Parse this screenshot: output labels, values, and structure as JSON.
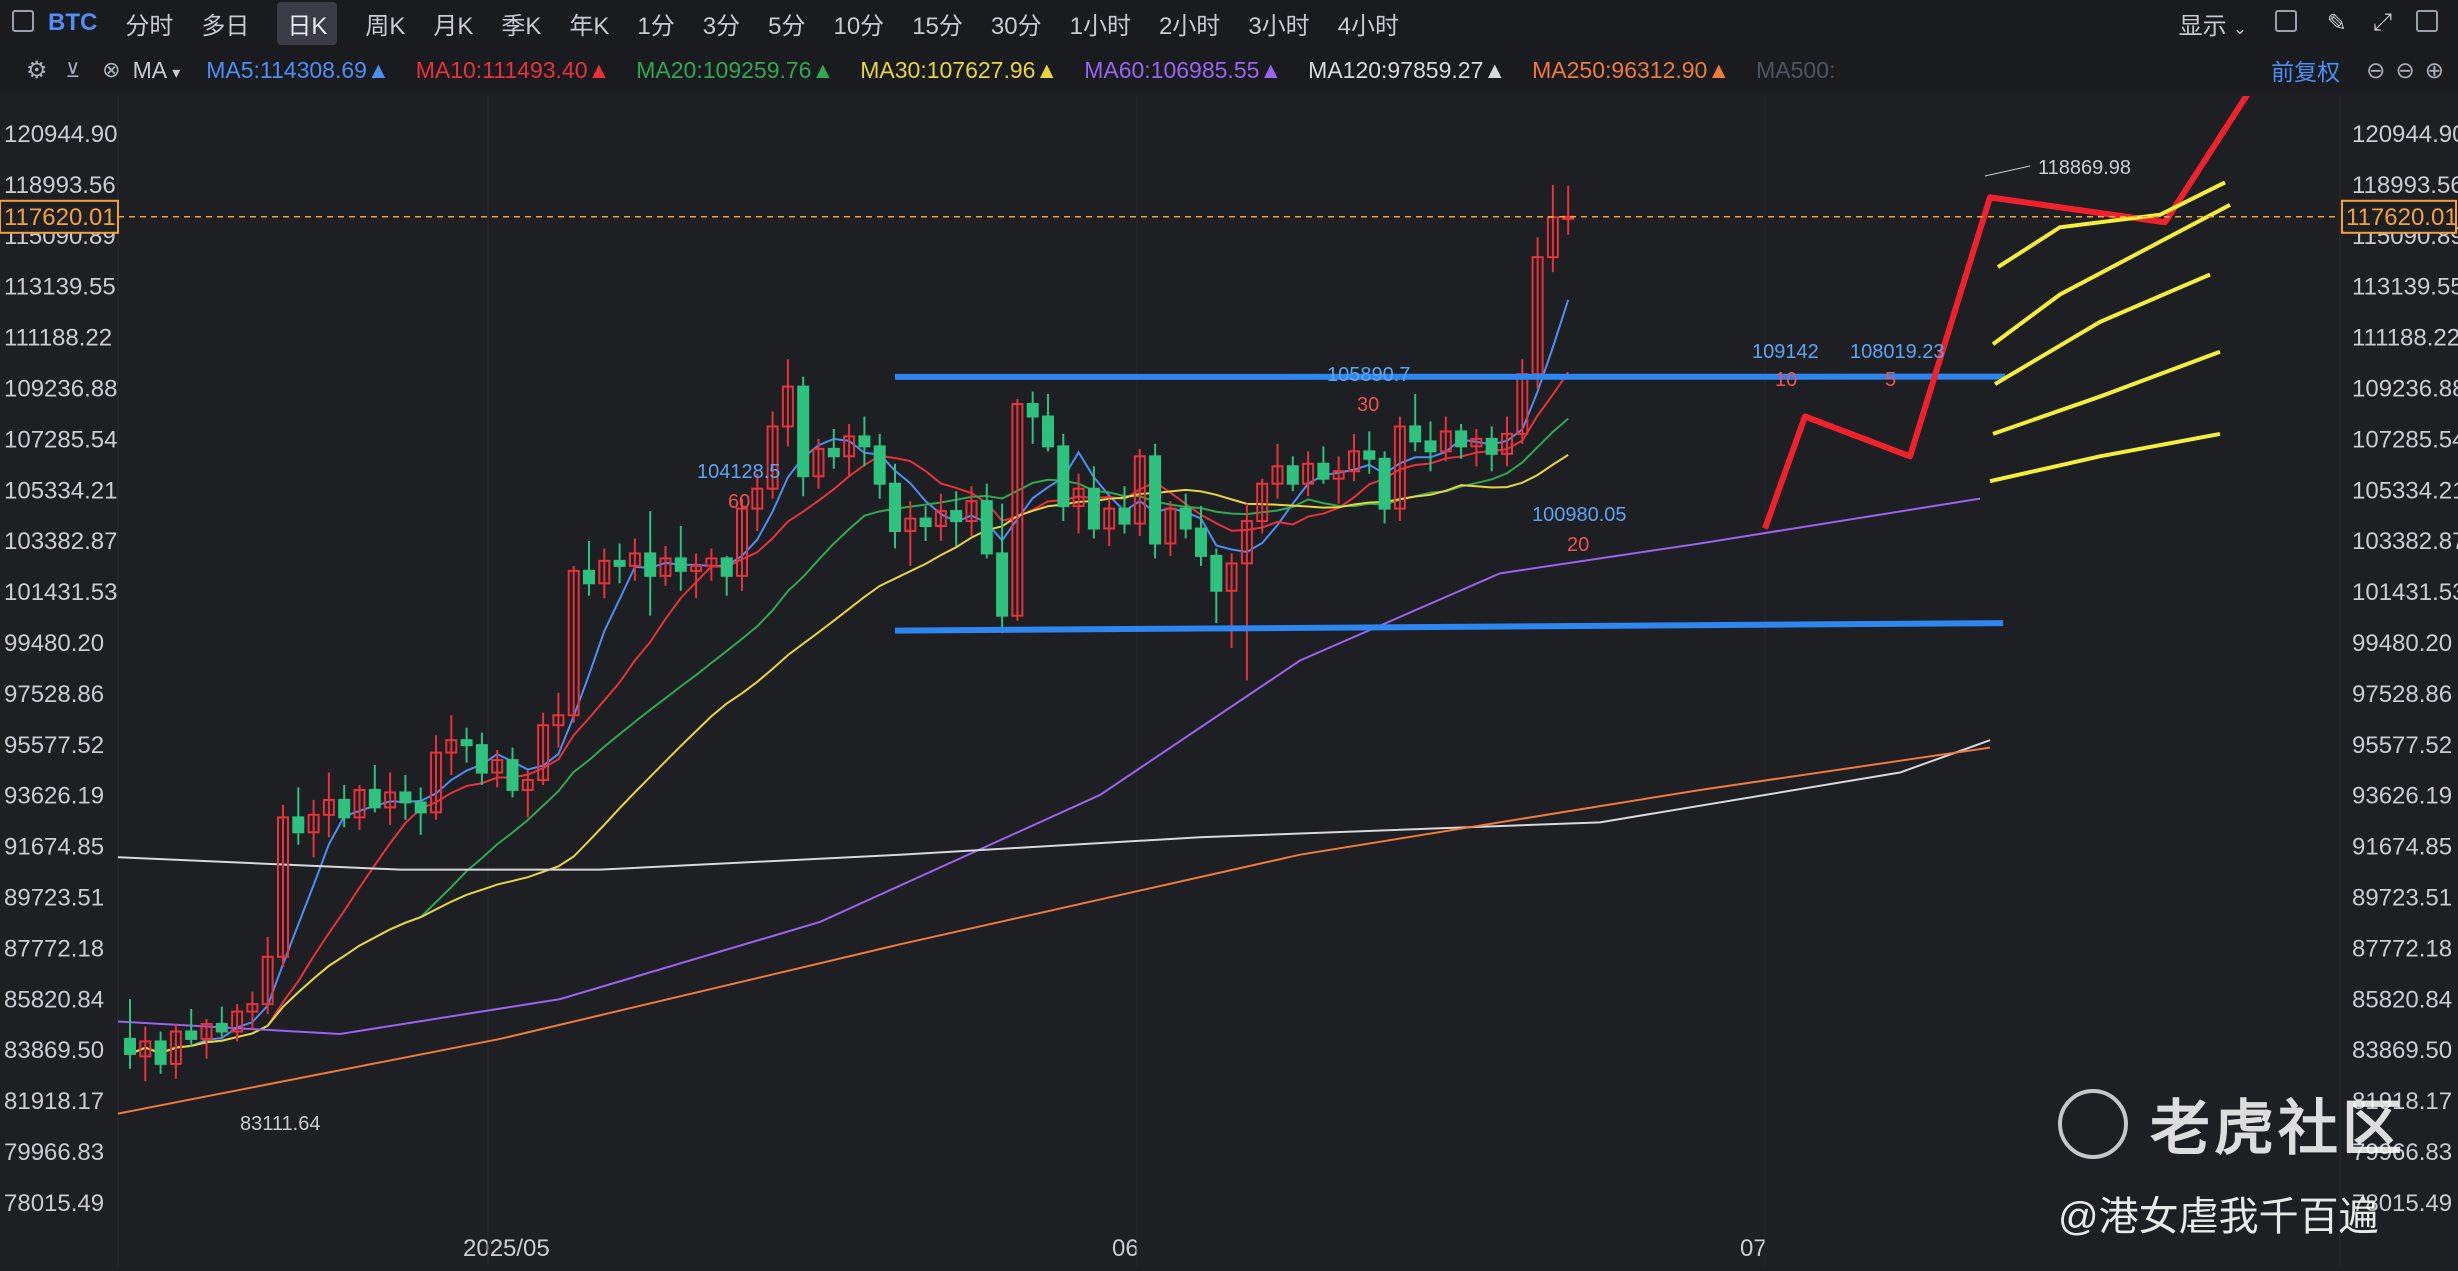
{
  "toolbar": {
    "symbol": "BTC",
    "periods": [
      "分时",
      "多日",
      "日K",
      "周K",
      "月K",
      "季K",
      "年K",
      "1分",
      "3分",
      "5分",
      "10分",
      "15分",
      "30分",
      "1小时",
      "2小时",
      "3小时",
      "4小时"
    ],
    "active_period": "日K",
    "display_label": "显示"
  },
  "ma_bar": {
    "ma_label": "MA",
    "items": [
      {
        "text": "MA5:114308.69▲",
        "color": "#4b8ef5"
      },
      {
        "text": "MA10:111493.40▲",
        "color": "#e8313a"
      },
      {
        "text": "MA20:109259.76▲",
        "color": "#2fa84f"
      },
      {
        "text": "MA30:107627.96▲",
        "color": "#e8d53c"
      },
      {
        "text": "MA60:106985.55▲",
        "color": "#9a63f0"
      },
      {
        "text": "MA120:97859.27▲",
        "color": "#d7d9de"
      },
      {
        "text": "MA250:96312.90▲",
        "color": "#f07a3a"
      },
      {
        "text": "MA500:",
        "color": "#4e5560"
      }
    ],
    "adjust_label": "前复权"
  },
  "axis": {
    "y_ticks": [
      "120944.90",
      "118993.56",
      "115090.89",
      "113139.55",
      "111188.22",
      "109236.88",
      "107285.54",
      "105334.21",
      "103382.87",
      "101431.53",
      "99480.20",
      "97528.86",
      "95577.52",
      "93626.19",
      "91674.85",
      "89723.51",
      "87772.18",
      "85820.84",
      "83869.50",
      "81918.17",
      "79966.83",
      "78015.49"
    ],
    "x_ticks": [
      "2025/05",
      "06",
      "07"
    ],
    "current_price": "117620.01"
  },
  "annotations": {
    "high": "118869.98",
    "low": "83111.64",
    "a1": "104128.5",
    "a1n": "60",
    "a2": "105890.7",
    "a2n": "30",
    "a3": "100980.05",
    "a3n": "20",
    "a4": "109142",
    "a4n": "10",
    "a5": "108019.23",
    "a5n": "5"
  },
  "watermark": {
    "brand": "老虎社区",
    "author": "@港女虐我千百遍"
  },
  "chart_data": {
    "type": "candlestick",
    "title": "",
    "series": [
      {
        "name": "MA5",
        "color": "#4b8ef5"
      },
      {
        "name": "MA10",
        "color": "#e8313a"
      },
      {
        "name": "MA20",
        "color": "#2fa84f"
      },
      {
        "name": "MA30",
        "color": "#e8d53c"
      },
      {
        "name": "MA60",
        "color": "#9a63f0"
      },
      {
        "name": "MA120",
        "color": "#d7d9de"
      },
      {
        "name": "MA250",
        "color": "#f07a3a"
      }
    ],
    "ohlc": [
      [
        84600,
        86200,
        83400,
        84000
      ],
      [
        83900,
        85100,
        82900,
        84500
      ],
      [
        84500,
        84900,
        83200,
        83600
      ],
      [
        83600,
        85200,
        83000,
        84900
      ],
      [
        84900,
        85800,
        84300,
        84600
      ],
      [
        84600,
        85400,
        83800,
        85200
      ],
      [
        85200,
        85900,
        84700,
        84900
      ],
      [
        84900,
        86000,
        84500,
        85700
      ],
      [
        85700,
        86500,
        85000,
        86000
      ],
      [
        86000,
        88700,
        85600,
        87900
      ],
      [
        87900,
        94000,
        87500,
        93500
      ],
      [
        93500,
        94700,
        92400,
        92900
      ],
      [
        92900,
        94200,
        91900,
        93600
      ],
      [
        93600,
        95300,
        92700,
        94200
      ],
      [
        94200,
        94800,
        93100,
        93500
      ],
      [
        93500,
        94800,
        93000,
        94600
      ],
      [
        94600,
        95600,
        93700,
        93900
      ],
      [
        93900,
        95300,
        93200,
        94500
      ],
      [
        94500,
        95200,
        93400,
        94100
      ],
      [
        94100,
        94700,
        92800,
        93700
      ],
      [
        93700,
        96800,
        93400,
        96100
      ],
      [
        96100,
        97600,
        95200,
        96600
      ],
      [
        96600,
        97100,
        95700,
        96400
      ],
      [
        96400,
        96900,
        94800,
        95300
      ],
      [
        95300,
        96200,
        94700,
        95800
      ],
      [
        95800,
        96300,
        94300,
        94600
      ],
      [
        94600,
        95400,
        93500,
        95000
      ],
      [
        95000,
        97700,
        94800,
        97200
      ],
      [
        97200,
        98500,
        96300,
        97600
      ],
      [
        97600,
        103600,
        97300,
        103400
      ],
      [
        103400,
        104600,
        102400,
        102900
      ],
      [
        102900,
        104300,
        102300,
        103800
      ],
      [
        103800,
        104500,
        102900,
        103600
      ],
      [
        103600,
        104700,
        103000,
        104100
      ],
      [
        104100,
        105800,
        101600,
        103200
      ],
      [
        103200,
        104400,
        102800,
        103900
      ],
      [
        103900,
        105200,
        102600,
        103400
      ],
      [
        103400,
        104100,
        102300,
        103600
      ],
      [
        103600,
        104300,
        103000,
        103900
      ],
      [
        103900,
        104000,
        102400,
        103200
      ],
      [
        103200,
        106300,
        102600,
        105900
      ],
      [
        105900,
        107300,
        105000,
        106700
      ],
      [
        106700,
        109800,
        106300,
        109200
      ],
      [
        109200,
        111900,
        108400,
        110800
      ],
      [
        110800,
        111200,
        106400,
        107200
      ],
      [
        107200,
        108700,
        106700,
        108300
      ],
      [
        108300,
        109100,
        107500,
        108000
      ],
      [
        108000,
        109300,
        107200,
        108800
      ],
      [
        108800,
        109600,
        107600,
        108400
      ],
      [
        108400,
        108900,
        106300,
        106900
      ],
      [
        106900,
        107700,
        104300,
        105000
      ],
      [
        105000,
        106200,
        103600,
        105500
      ],
      [
        105500,
        106000,
        104600,
        105200
      ],
      [
        105200,
        106500,
        104600,
        105800
      ],
      [
        105800,
        106600,
        104400,
        105400
      ],
      [
        105400,
        106800,
        104800,
        106200
      ],
      [
        106200,
        106900,
        103900,
        104100
      ],
      [
        104100,
        106100,
        100900,
        101600
      ],
      [
        101600,
        110300,
        101400,
        110100
      ],
      [
        110100,
        110600,
        108500,
        109600
      ],
      [
        109600,
        110500,
        108200,
        108400
      ],
      [
        108400,
        108900,
        105400,
        106000
      ],
      [
        106000,
        107300,
        104900,
        106700
      ],
      [
        106700,
        107600,
        104700,
        105100
      ],
      [
        105100,
        106300,
        104400,
        105900
      ],
      [
        105900,
        106800,
        104900,
        105300
      ],
      [
        105300,
        108300,
        104800,
        108000
      ],
      [
        108000,
        108500,
        103900,
        104500
      ],
      [
        104500,
        106200,
        104000,
        105900
      ],
      [
        105900,
        106500,
        104700,
        105100
      ],
      [
        105100,
        106000,
        103600,
        104000
      ],
      [
        104000,
        104300,
        101300,
        102600
      ],
      [
        102600,
        104100,
        100300,
        103700
      ],
      [
        103700,
        106100,
        99000,
        105400
      ],
      [
        105400,
        107100,
        104900,
        106900
      ],
      [
        106900,
        108500,
        106300,
        107600
      ],
      [
        107600,
        108000,
        106600,
        106900
      ],
      [
        106900,
        108200,
        106400,
        107700
      ],
      [
        107700,
        108400,
        106900,
        107100
      ],
      [
        107100,
        108000,
        106100,
        107400
      ],
      [
        107400,
        108900,
        107000,
        108200
      ],
      [
        108200,
        109000,
        107300,
        107900
      ],
      [
        107900,
        108200,
        105300,
        105900
      ],
      [
        105900,
        109600,
        105400,
        109200
      ],
      [
        109200,
        110500,
        108200,
        108600
      ],
      [
        108600,
        109400,
        107400,
        108200
      ],
      [
        108200,
        109600,
        107800,
        109000
      ],
      [
        109000,
        109300,
        107900,
        108400
      ],
      [
        108400,
        109100,
        107600,
        108700
      ],
      [
        108700,
        109200,
        107400,
        108100
      ],
      [
        108100,
        109600,
        107600,
        108900
      ],
      [
        108900,
        111900,
        108500,
        111300
      ],
      [
        111300,
        116800,
        110700,
        116000
      ],
      [
        116000,
        118900,
        115400,
        117600
      ],
      [
        117600,
        118869,
        116900,
        117620
      ]
    ]
  }
}
